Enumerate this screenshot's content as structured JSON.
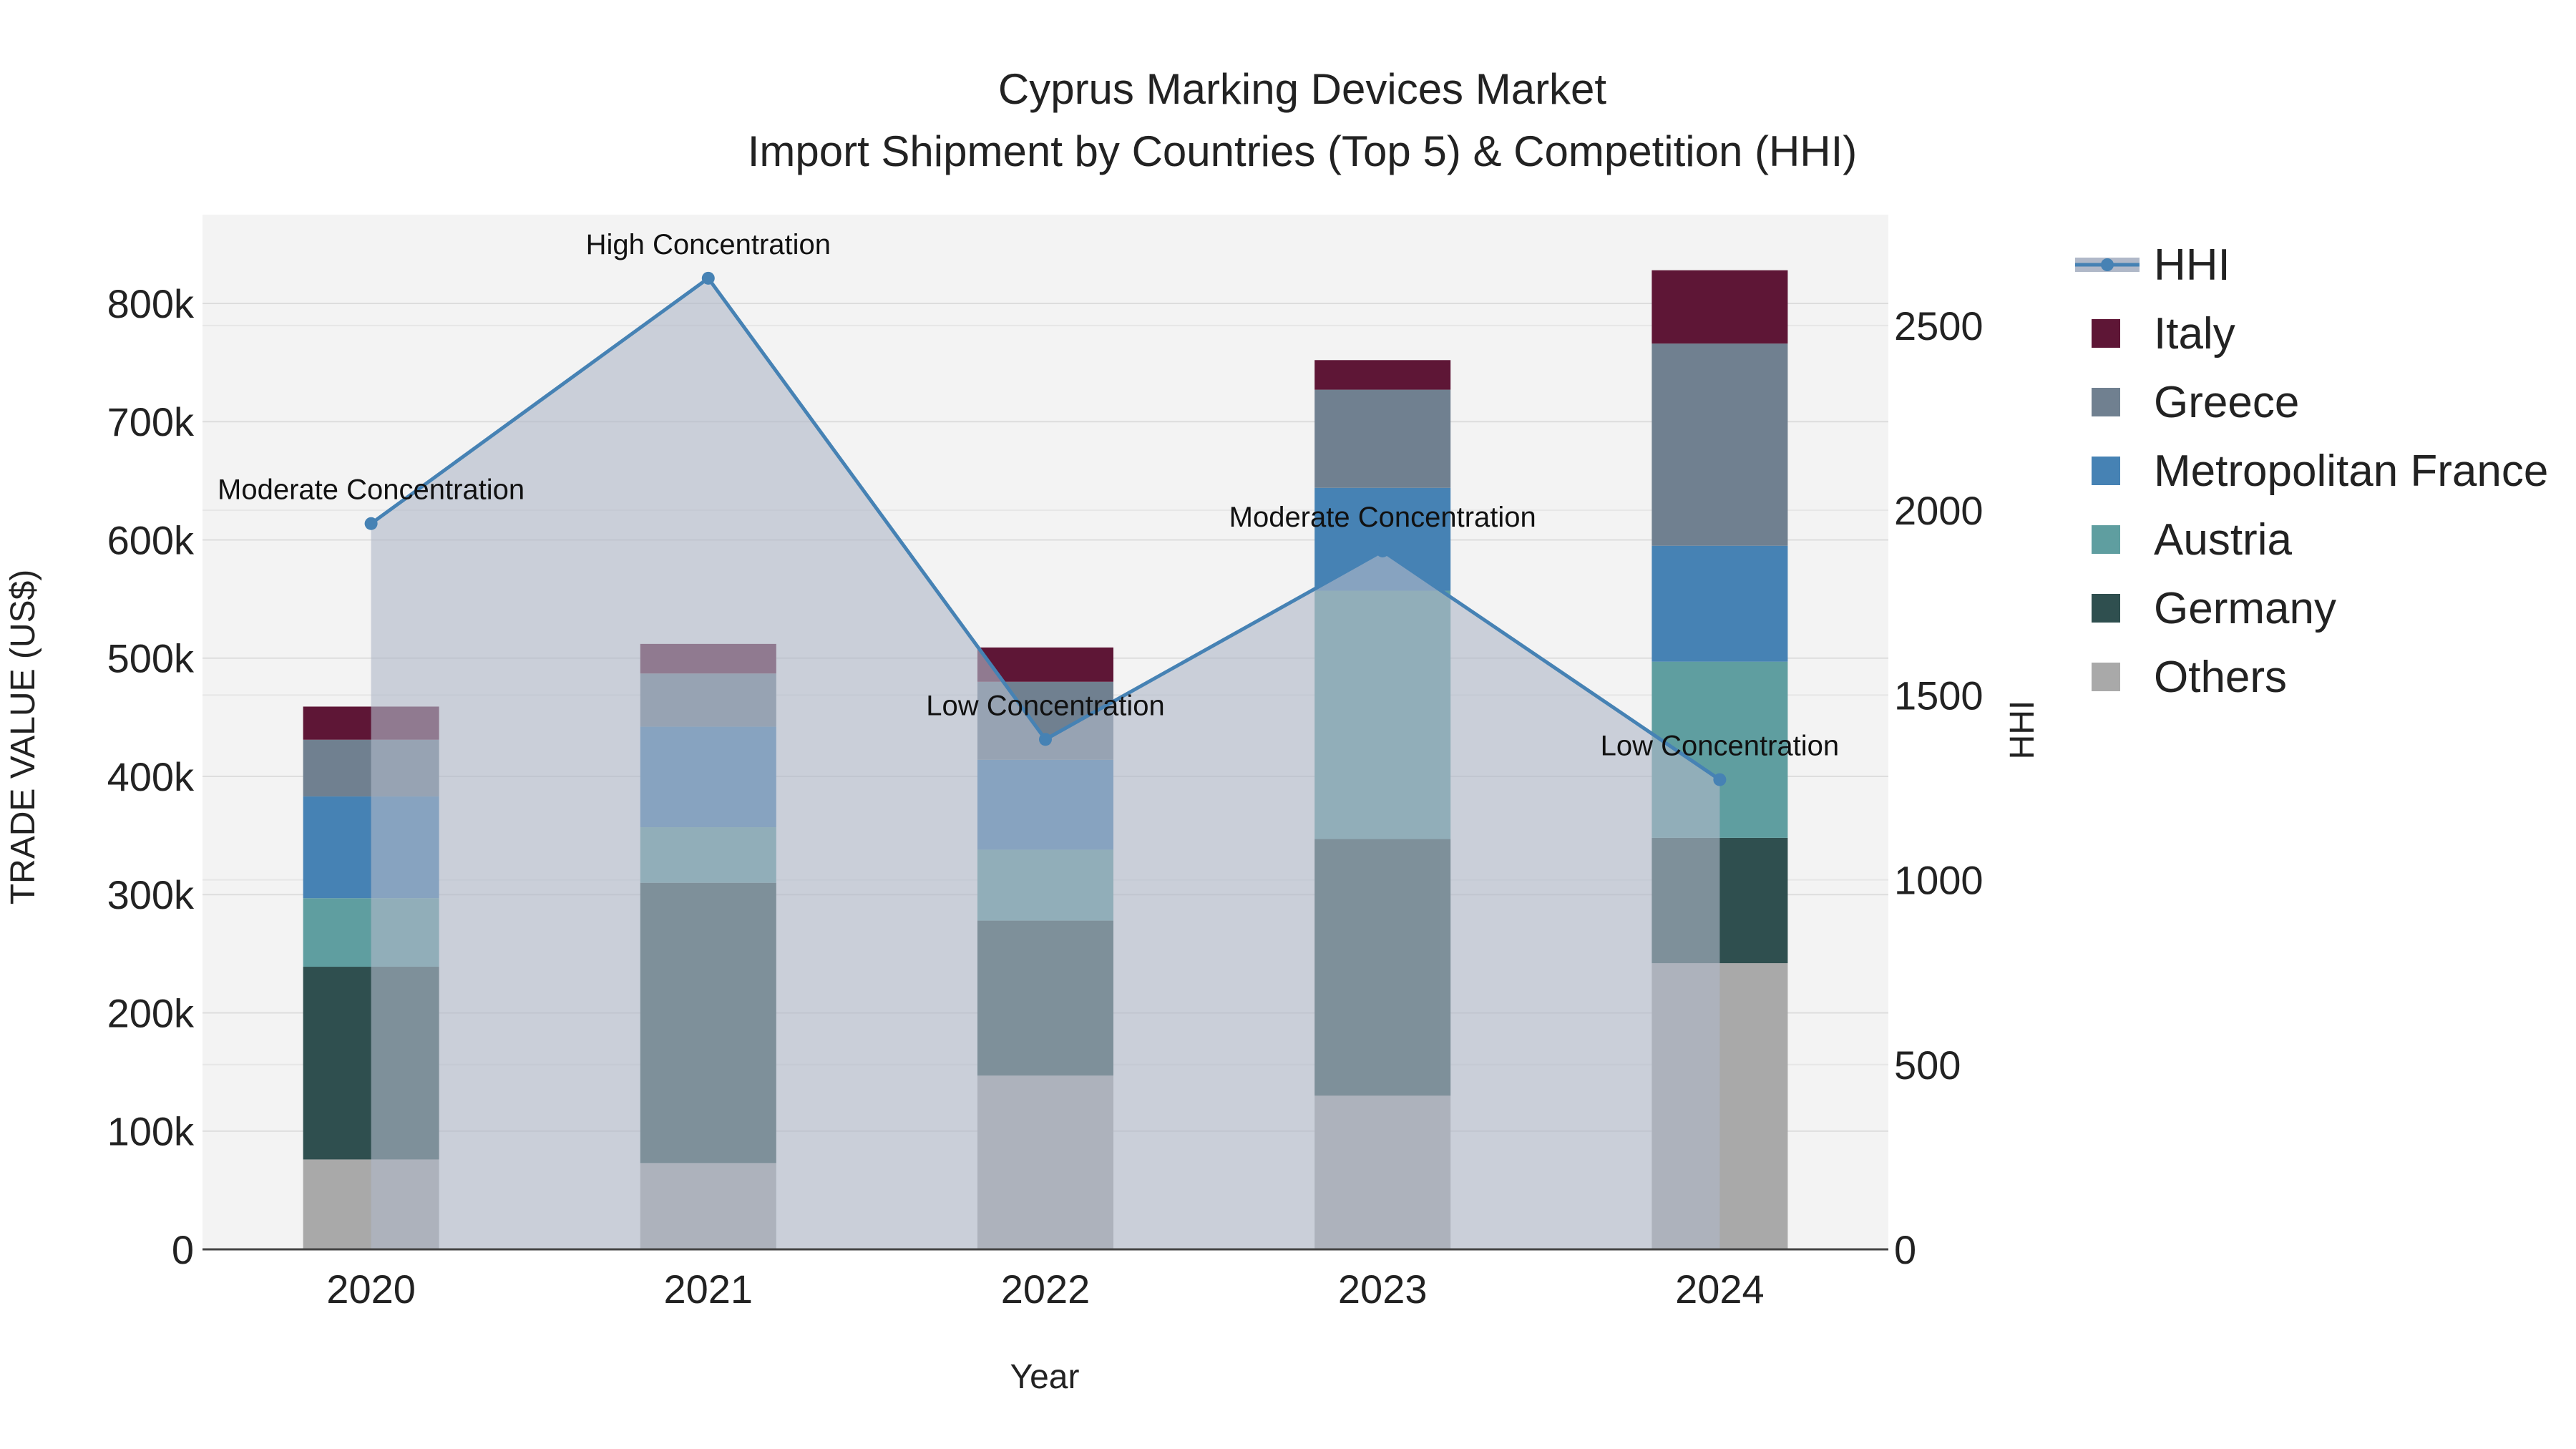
{
  "chart_data": {
    "type": "bar",
    "title_line1": "Cyprus Marking Devices Market",
    "title_line2": "Import Shipment by Countries (Top 5) & Competition (HHI)",
    "xlabel": "Year",
    "ylabel": "TRADE VALUE (US$)",
    "y2label": "HHI",
    "categories": [
      "2020",
      "2021",
      "2022",
      "2023",
      "2024"
    ],
    "ylim": [
      0,
      875000
    ],
    "y2lim": [
      0,
      2800
    ],
    "y_ticks": [
      0,
      100000,
      200000,
      300000,
      400000,
      500000,
      600000,
      700000,
      800000
    ],
    "y_tick_labels": [
      "0",
      "100k",
      "200k",
      "300k",
      "400k",
      "500k",
      "600k",
      "700k",
      "800k"
    ],
    "y2_ticks": [
      0,
      500,
      1000,
      1500,
      2000,
      2500
    ],
    "y2_tick_labels": [
      "0",
      "500",
      "1000",
      "1500",
      "2000",
      "2500"
    ],
    "stack_order": [
      "Others",
      "Germany",
      "Austria",
      "Metropolitan France",
      "Greece",
      "Italy"
    ],
    "series": [
      {
        "name": "Others",
        "color": "#a9a9a9",
        "values": [
          76000,
          73000,
          147000,
          130000,
          242000
        ]
      },
      {
        "name": "Germany",
        "color": "#2f4f4f",
        "values": [
          163000,
          237000,
          131000,
          217000,
          106000
        ]
      },
      {
        "name": "Austria",
        "color": "#5f9ea0",
        "values": [
          58000,
          47000,
          60000,
          210000,
          149000
        ]
      },
      {
        "name": "Metropolitan France",
        "color": "#4682b4",
        "values": [
          86000,
          85000,
          76000,
          87000,
          98000
        ]
      },
      {
        "name": "Greece",
        "color": "#708090",
        "values": [
          48000,
          45000,
          66000,
          83000,
          171000
        ]
      },
      {
        "name": "Italy",
        "color": "#5e1636",
        "values": [
          28000,
          25000,
          29000,
          25000,
          62000
        ]
      }
    ],
    "hhi": {
      "name": "HHI",
      "color": "#4682b4",
      "fill_color": "#b0b8c8",
      "values": [
        1964,
        2628,
        1380,
        1890,
        1271
      ],
      "annotations": [
        "Moderate Concentration",
        "High Concentration",
        "Low Concentration",
        "Moderate Concentration",
        "Low Concentration"
      ]
    },
    "legend_order": [
      "HHI",
      "Italy",
      "Greece",
      "Metropolitan France",
      "Austria",
      "Germany",
      "Others"
    ],
    "legend_position": "right"
  }
}
